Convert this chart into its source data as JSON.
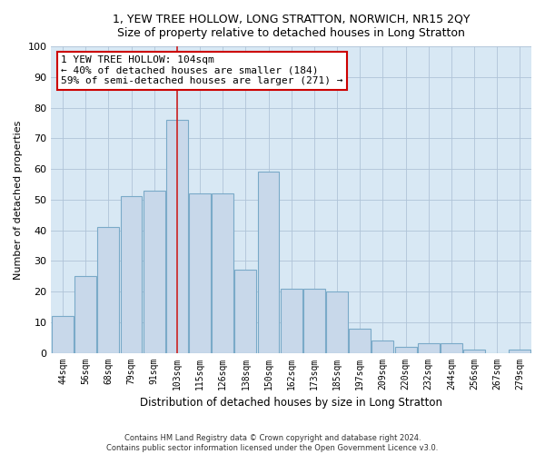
{
  "title": "1, YEW TREE HOLLOW, LONG STRATTON, NORWICH, NR15 2QY",
  "subtitle": "Size of property relative to detached houses in Long Stratton",
  "xlabel": "Distribution of detached houses by size in Long Stratton",
  "ylabel": "Number of detached properties",
  "bar_color": "#c8d8ea",
  "bar_edge_color": "#7aaac8",
  "grid_color": "#b0c4d8",
  "bg_color": "#d8e8f4",
  "annotation_line_color": "#cc2222",
  "annotation_box_color": "#cc0000",
  "annotation_text": "1 YEW TREE HOLLOW: 104sqm\n← 40% of detached houses are smaller (184)\n59% of semi-detached houses are larger (271) →",
  "property_size": 104,
  "footer": "Contains HM Land Registry data © Crown copyright and database right 2024.\nContains public sector information licensed under the Open Government Licence v3.0.",
  "bin_labels": [
    "44sqm",
    "56sqm",
    "68sqm",
    "79sqm",
    "91sqm",
    "103sqm",
    "115sqm",
    "126sqm",
    "138sqm",
    "150sqm",
    "162sqm",
    "173sqm",
    "185sqm",
    "197sqm",
    "209sqm",
    "220sqm",
    "232sqm",
    "244sqm",
    "256sqm",
    "267sqm",
    "279sqm"
  ],
  "bar_heights": [
    12,
    25,
    41,
    51,
    53,
    76,
    52,
    52,
    27,
    59,
    21,
    21,
    20,
    8,
    4,
    2,
    3,
    3,
    1,
    0,
    1
  ],
  "ylim": [
    0,
    100
  ],
  "yticks": [
    0,
    10,
    20,
    30,
    40,
    50,
    60,
    70,
    80,
    90,
    100
  ],
  "property_bin_index": 5,
  "figsize": [
    6.0,
    5.0
  ],
  "dpi": 100
}
